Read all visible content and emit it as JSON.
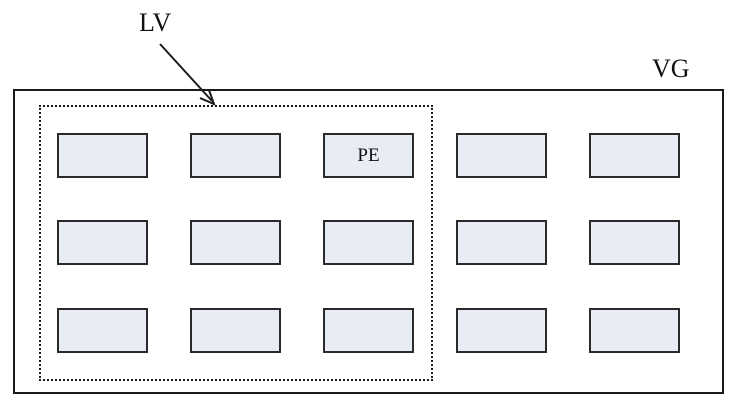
{
  "labels": {
    "lv": "LV",
    "vg": "VG"
  },
  "grid": {
    "rows": [
      [
        "",
        "",
        "PE",
        "",
        ""
      ],
      [
        "",
        "",
        "",
        "",
        ""
      ],
      [
        "",
        "",
        "",
        "",
        ""
      ]
    ]
  },
  "colors": {
    "pe_fill": "#e8edf5",
    "border": "#1a1a1a"
  }
}
